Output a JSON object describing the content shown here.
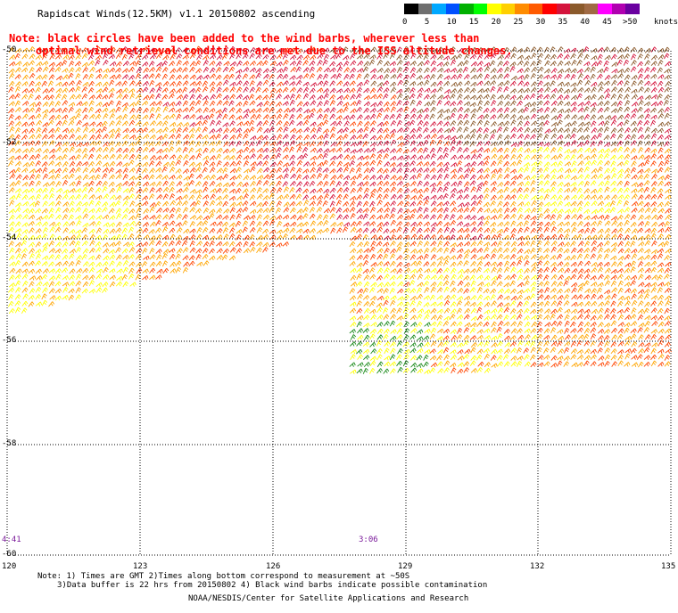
{
  "header": {
    "title": "Rapidscat Winds(12.5KM) v1.1 20150802 ascending",
    "note_line1": "Note: black circles have been added to the wind barbs, wherever less than",
    "note_line2": "optimal wind retrieval conditions are met due to the ISS altitude changes."
  },
  "legend": {
    "unit": "knots",
    "labels": [
      "0",
      "5",
      "10",
      "15",
      "20",
      "25",
      "30",
      "35",
      "40",
      "45",
      ">50"
    ],
    "colors": [
      "#000000",
      "#6e6e6e",
      "#00a8ff",
      "#0050ff",
      "#00b000",
      "#00ff00",
      "#ffff00",
      "#ffd000",
      "#ff8c00",
      "#ff5a00",
      "#ff0000",
      "#d4143c",
      "#8b5a2b",
      "#a06a44",
      "#ff00ff",
      "#b000b0",
      "#6a00a0"
    ]
  },
  "map": {
    "lat_labels": [
      "-50",
      "-52",
      "-54",
      "-56",
      "-58",
      "-60"
    ],
    "lon_labels": [
      "120",
      "123",
      "126",
      "129",
      "132",
      "135"
    ],
    "pass_times": [
      "4:41",
      "3:06"
    ],
    "barb_colors": {
      "calm": "#1a8a1a",
      "light": "#ffff00",
      "moderate": "#ffa500",
      "fresh": "#ff4500",
      "strong": "#d4143c",
      "gale": "#8b5a2b",
      "storm": "#c000c0"
    }
  },
  "footer": {
    "line1": "Note: 1) Times are GMT 2)Times along bottom correspond to measurement at ~50S",
    "line2": "3)Data buffer is 22 hrs from 20150802 4) Black wind barbs indicate possible contamination",
    "credit": "NOAA/NESDIS/Center for Satellite Applications and Research"
  }
}
